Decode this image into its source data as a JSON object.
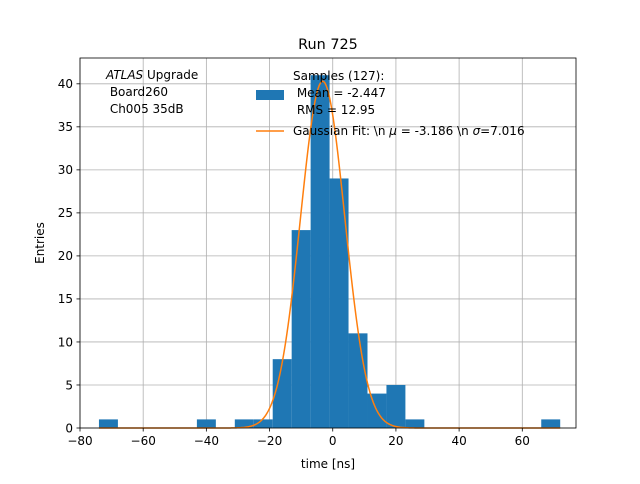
{
  "chart_data": {
    "type": "bar",
    "title": "Run 725",
    "xlabel": "time [ns]",
    "ylabel": "Entries",
    "xlim": [
      -80,
      77
    ],
    "ylim": [
      0,
      43
    ],
    "xticks": [
      -80,
      -60,
      -40,
      -20,
      0,
      20,
      40,
      60
    ],
    "yticks": [
      0,
      5,
      10,
      15,
      20,
      25,
      30,
      35,
      40
    ],
    "grid": true,
    "bar_color": "#1f77b4",
    "fit_color": "#ff7f0e",
    "annotation": {
      "line1_italic": "ATLAS",
      "line1_rest": " Upgrade",
      "line2": " Board260",
      "line3": " Ch005 35dB"
    },
    "legend": {
      "placement": "top-center",
      "hist_line1": "Samples (127):",
      "hist_line2": " Mean = -2.447",
      "hist_line3": " RMS = 12.95",
      "fit_prefix": "Gaussian Fit: \\n ",
      "fit_mu_symbol": "μ",
      "fit_mid": " = -3.186 \\n ",
      "fit_sigma_symbol": "σ",
      "fit_suffix": "=7.016"
    },
    "bins": [
      {
        "x0": -74,
        "x1": -68,
        "count": 1
      },
      {
        "x0": -43,
        "x1": -37,
        "count": 1
      },
      {
        "x0": -31,
        "x1": -25,
        "count": 1
      },
      {
        "x0": -25,
        "x1": -19,
        "count": 1
      },
      {
        "x0": -19,
        "x1": -13,
        "count": 8
      },
      {
        "x0": -13,
        "x1": -7,
        "count": 23
      },
      {
        "x0": -7,
        "x1": -1,
        "count": 41
      },
      {
        "x0": -1,
        "x1": 5,
        "count": 29
      },
      {
        "x0": 5,
        "x1": 11,
        "count": 11
      },
      {
        "x0": 11,
        "x1": 17,
        "count": 4
      },
      {
        "x0": 17,
        "x1": 23,
        "count": 5
      },
      {
        "x0": 23,
        "x1": 29,
        "count": 1
      },
      {
        "x0": 66,
        "x1": 72,
        "count": 1
      }
    ],
    "gaussian_fit": {
      "mu": -3.186,
      "sigma": 7.016,
      "amplitude": 40.3,
      "x_range": [
        -74,
        72
      ]
    }
  }
}
